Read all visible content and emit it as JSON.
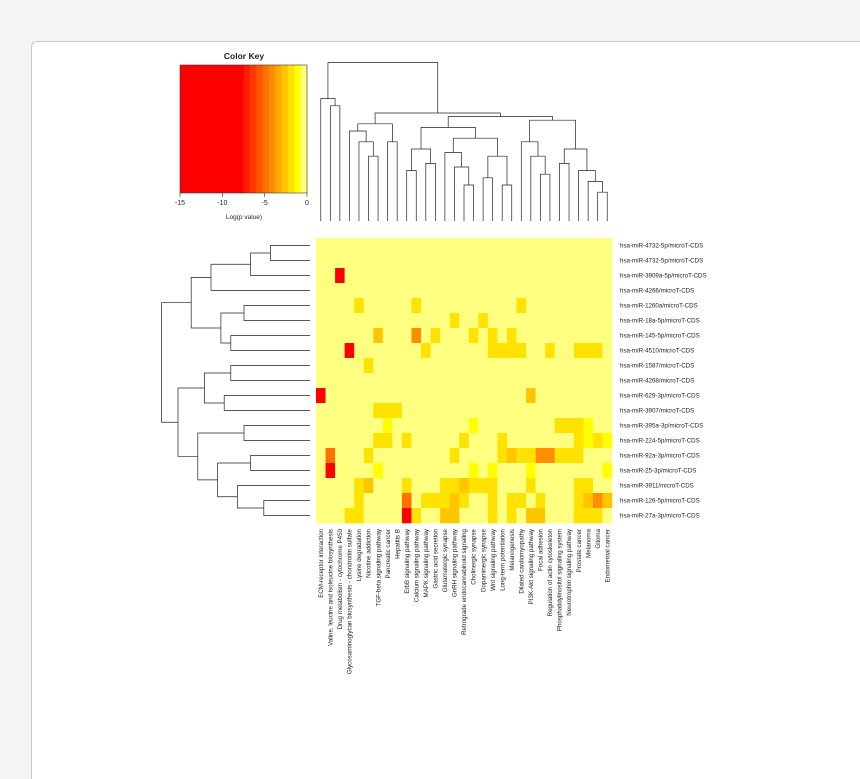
{
  "chart_data": {
    "type": "heatmap",
    "color_key": {
      "title": "Color Key",
      "xlabel": "Log(p value)",
      "ticks": [
        "-15",
        "-10",
        "-5",
        "0"
      ],
      "range": [
        -15,
        0
      ],
      "colors": [
        "#ff0000",
        "#ff0000",
        "#ff0000",
        "#ff0000",
        "#ff0000",
        "#ff0000",
        "#ff0000",
        "#ff0000",
        "#ff0000",
        "#ff0000",
        "#ff1c00",
        "#ff3800",
        "#ff5500",
        "#ff7100",
        "#ff8d00",
        "#ffaa00",
        "#ffc600",
        "#ffe200",
        "#ffff00",
        "#ffff80"
      ]
    },
    "rows": [
      "hsa-miR-4732-5p/microT-CDS",
      "hsa-miR-4732-5p/microT-CDS",
      "hsa-miR-3909a-5p/microT-CDS",
      "hsa-miR-4266/microT-CDS",
      "hsa-miR-1260a/microT-CDS",
      "hsa-miR-18a-5p/microT-CDS",
      "hsa-miR-145-5p/microT-CDS",
      "hsa-miR-4510/microT-CDS",
      "hsa-miR-1587/microT-CDS",
      "hsa-miR-4268/microT-CDS",
      "hsa-miR-629-3p/microT-CDS",
      "hsa-miR-3907/microT-CDS",
      "hsa-miR-395a-3p/microT-CDS",
      "hsa-miR-224-5p/microT-CDS",
      "hsa-miR-92a-3p/microT-CDS",
      "hsa-miR-25-3p/microT-CDS",
      "hsa-miR-3911/microT-CDS",
      "hsa-miR-126-5p/microT-CDS",
      "hsa-miR-27a-3p/microT-CDS"
    ],
    "columns": [
      "ECM-receptor interaction",
      "Valine, leucine and isoleucine biosynthesis",
      "Drug metabolism - cytochrome P450",
      "Glycosaminoglycan biosynthesis - chondroitin sulfate",
      "Lysine degradation",
      "Nicotine addiction",
      "TGF-beta signaling pathway",
      "Pancreatic cancer",
      "Hepatitis B",
      "ErbB signaling pathway",
      "Calcium signaling pathway",
      "MAPK signaling pathway",
      "Gastric acid secretion",
      "Glutamatergic synapse",
      "GnRH signaling pathway",
      "Retrograde endocannabinoid signaling",
      "Cholinergic synapse",
      "Dopaminergic synapse",
      "Wnt signaling pathway",
      "Long-term potentiation",
      "Melanogenesis",
      "Dilated cardiomyopathy",
      "PI3K-Akt signaling pathway",
      "Focal adhesion",
      "Regulation of actin cytoskeleton",
      "Phosphatidylinositol signaling system",
      "Neurotrophin signaling pathway",
      "Prostate cancer",
      "Melanoma",
      "Glioma",
      "Endometrial cancer"
    ],
    "background_value": 0,
    "cells": [
      {
        "row": 2,
        "col": 2,
        "value": -15
      },
      {
        "row": 4,
        "col": 4,
        "value": -2
      },
      {
        "row": 4,
        "col": 10,
        "value": -2
      },
      {
        "row": 4,
        "col": 21,
        "value": -2
      },
      {
        "row": 5,
        "col": 14,
        "value": -2
      },
      {
        "row": 5,
        "col": 17,
        "value": -2
      },
      {
        "row": 6,
        "col": 6,
        "value": -3
      },
      {
        "row": 6,
        "col": 10,
        "value": -4
      },
      {
        "row": 6,
        "col": 12,
        "value": -2
      },
      {
        "row": 6,
        "col": 16,
        "value": -2
      },
      {
        "row": 6,
        "col": 18,
        "value": -2
      },
      {
        "row": 6,
        "col": 20,
        "value": -2
      },
      {
        "row": 7,
        "col": 3,
        "value": -15
      },
      {
        "row": 7,
        "col": 11,
        "value": -2
      },
      {
        "row": 7,
        "col": 18,
        "value": -2
      },
      {
        "row": 7,
        "col": 19,
        "value": -2
      },
      {
        "row": 7,
        "col": 20,
        "value": -2
      },
      {
        "row": 7,
        "col": 21,
        "value": -2
      },
      {
        "row": 7,
        "col": 24,
        "value": -2
      },
      {
        "row": 7,
        "col": 27,
        "value": -2
      },
      {
        "row": 7,
        "col": 28,
        "value": -2
      },
      {
        "row": 7,
        "col": 29,
        "value": -2
      },
      {
        "row": 8,
        "col": 5,
        "value": -2
      },
      {
        "row": 10,
        "col": 0,
        "value": -15
      },
      {
        "row": 10,
        "col": 22,
        "value": -3
      },
      {
        "row": 11,
        "col": 6,
        "value": -2
      },
      {
        "row": 11,
        "col": 7,
        "value": -2
      },
      {
        "row": 11,
        "col": 8,
        "value": -2
      },
      {
        "row": 12,
        "col": 7,
        "value": -1
      },
      {
        "row": 12,
        "col": 16,
        "value": -1
      },
      {
        "row": 12,
        "col": 25,
        "value": -2
      },
      {
        "row": 12,
        "col": 26,
        "value": -2
      },
      {
        "row": 12,
        "col": 27,
        "value": -2
      },
      {
        "row": 12,
        "col": 28,
        "value": -1
      },
      {
        "row": 13,
        "col": 6,
        "value": -2
      },
      {
        "row": 13,
        "col": 7,
        "value": -2
      },
      {
        "row": 13,
        "col": 9,
        "value": -2
      },
      {
        "row": 13,
        "col": 15,
        "value": -2
      },
      {
        "row": 13,
        "col": 19,
        "value": -2
      },
      {
        "row": 13,
        "col": 27,
        "value": -2
      },
      {
        "row": 13,
        "col": 28,
        "value": -1
      },
      {
        "row": 13,
        "col": 29,
        "value": -2
      },
      {
        "row": 13,
        "col": 30,
        "value": -1
      },
      {
        "row": 14,
        "col": 1,
        "value": -5
      },
      {
        "row": 14,
        "col": 5,
        "value": -2
      },
      {
        "row": 14,
        "col": 14,
        "value": -2
      },
      {
        "row": 14,
        "col": 19,
        "value": -2
      },
      {
        "row": 14,
        "col": 20,
        "value": -3
      },
      {
        "row": 14,
        "col": 21,
        "value": -2
      },
      {
        "row": 14,
        "col": 22,
        "value": -2
      },
      {
        "row": 14,
        "col": 23,
        "value": -4
      },
      {
        "row": 14,
        "col": 24,
        "value": -4
      },
      {
        "row": 14,
        "col": 25,
        "value": -2
      },
      {
        "row": 14,
        "col": 26,
        "value": -2
      },
      {
        "row": 14,
        "col": 27,
        "value": -2
      },
      {
        "row": 15,
        "col": 1,
        "value": -14
      },
      {
        "row": 15,
        "col": 6,
        "value": -1
      },
      {
        "row": 15,
        "col": 16,
        "value": -1
      },
      {
        "row": 15,
        "col": 18,
        "value": -1
      },
      {
        "row": 15,
        "col": 22,
        "value": -1
      },
      {
        "row": 15,
        "col": 30,
        "value": -1
      },
      {
        "row": 16,
        "col": 4,
        "value": -2
      },
      {
        "row": 16,
        "col": 5,
        "value": -3
      },
      {
        "row": 16,
        "col": 9,
        "value": -2
      },
      {
        "row": 16,
        "col": 13,
        "value": -2
      },
      {
        "row": 16,
        "col": 14,
        "value": -2
      },
      {
        "row": 16,
        "col": 15,
        "value": -3
      },
      {
        "row": 16,
        "col": 16,
        "value": -2
      },
      {
        "row": 16,
        "col": 17,
        "value": -2
      },
      {
        "row": 16,
        "col": 18,
        "value": -2
      },
      {
        "row": 16,
        "col": 22,
        "value": -2
      },
      {
        "row": 16,
        "col": 27,
        "value": -2
      },
      {
        "row": 16,
        "col": 28,
        "value": -2
      },
      {
        "row": 17,
        "col": 4,
        "value": -2
      },
      {
        "row": 17,
        "col": 9,
        "value": -5
      },
      {
        "row": 17,
        "col": 11,
        "value": -2
      },
      {
        "row": 17,
        "col": 12,
        "value": -2
      },
      {
        "row": 17,
        "col": 13,
        "value": -2
      },
      {
        "row": 17,
        "col": 14,
        "value": -3
      },
      {
        "row": 17,
        "col": 15,
        "value": -2
      },
      {
        "row": 17,
        "col": 18,
        "value": -2
      },
      {
        "row": 17,
        "col": 20,
        "value": -2
      },
      {
        "row": 17,
        "col": 21,
        "value": -2
      },
      {
        "row": 17,
        "col": 23,
        "value": -2
      },
      {
        "row": 17,
        "col": 27,
        "value": -2
      },
      {
        "row": 17,
        "col": 28,
        "value": -3
      },
      {
        "row": 17,
        "col": 29,
        "value": -4
      },
      {
        "row": 17,
        "col": 30,
        "value": -3
      },
      {
        "row": 18,
        "col": 3,
        "value": -2
      },
      {
        "row": 18,
        "col": 4,
        "value": -2
      },
      {
        "row": 18,
        "col": 9,
        "value": -9
      },
      {
        "row": 18,
        "col": 10,
        "value": -2
      },
      {
        "row": 18,
        "col": 13,
        "value": -3
      },
      {
        "row": 18,
        "col": 14,
        "value": -3
      },
      {
        "row": 18,
        "col": 18,
        "value": -2
      },
      {
        "row": 18,
        "col": 20,
        "value": -2
      },
      {
        "row": 18,
        "col": 22,
        "value": -3
      },
      {
        "row": 18,
        "col": 23,
        "value": -3
      },
      {
        "row": 18,
        "col": 27,
        "value": -2
      },
      {
        "row": 18,
        "col": 28,
        "value": -2
      },
      {
        "row": 18,
        "col": 29,
        "value": -2
      }
    ]
  }
}
